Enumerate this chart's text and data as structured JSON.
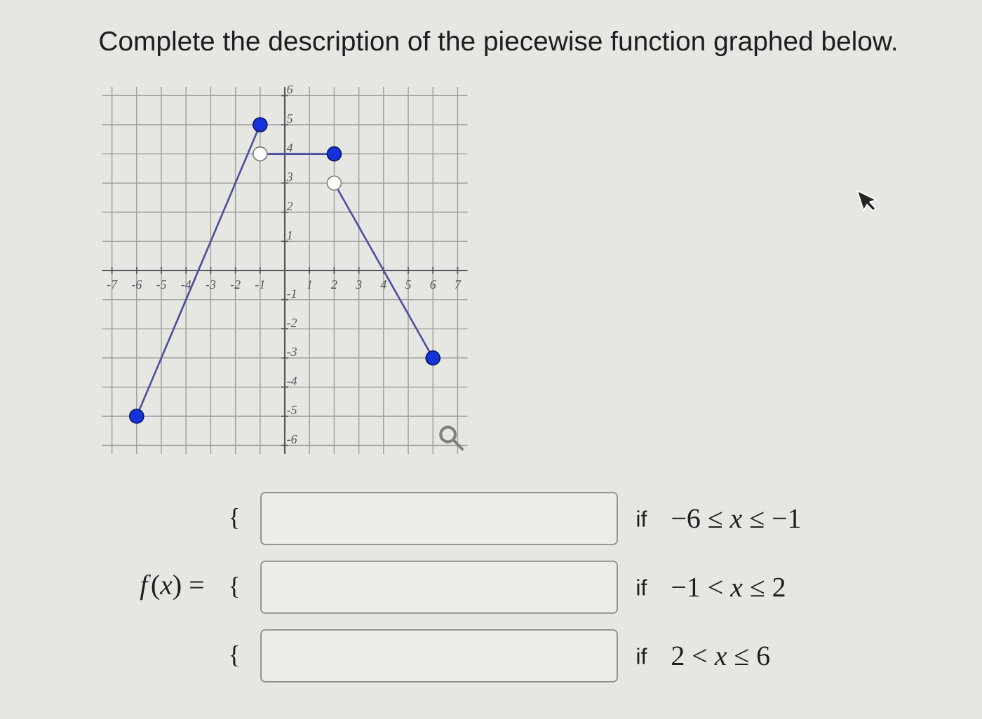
{
  "chart_data": {
    "type": "line",
    "title": "Complete the description of the piecewise function graphed below.",
    "annotations": [
      "*f*(*x*) =",
      "{",
      "{",
      "{",
      "if",
      "if",
      "if",
      "−6 ≤ *x* ≤ −1",
      "−1 < *x* ≤ 2",
      "2 < *x* ≤ 6"
    ],
    "series": [
      {
        "color": "#4a4f9e",
        "x": [
          -6,
          -1
        ],
        "values": [
          -5,
          5
        ]
      },
      {
        "color": "#4a4f9e",
        "x": [
          -1,
          2
        ],
        "values": [
          4,
          4
        ]
      },
      {
        "color": "#4a4f9e",
        "x": [
          2,
          6
        ],
        "values": [
          3,
          -3
        ]
      },
      {
        "type": "scatter",
        "color": "#1533d8",
        "marker": "circle",
        "x": [
          -6,
          -1,
          2,
          6
        ],
        "values": [
          -5,
          5,
          4,
          -3
        ]
      },
      {
        "type": "scatter",
        "color": "#ffffff",
        "marker": "circle",
        "x": [
          -1,
          2
        ],
        "values": [
          4,
          3
        ]
      }
    ],
    "xlim": [
      -7.4,
      7.4
    ],
    "ylim": [
      -6.3,
      6.3
    ],
    "xticks": [
      -7,
      -6,
      -5,
      -4,
      -3,
      -2,
      -1,
      1,
      2,
      3,
      4,
      5,
      6,
      7
    ],
    "yticks": [
      -6,
      -5,
      -4,
      -3,
      -2,
      -1,
      1,
      2,
      3,
      4,
      5,
      6
    ],
    "grid": true
  }
}
